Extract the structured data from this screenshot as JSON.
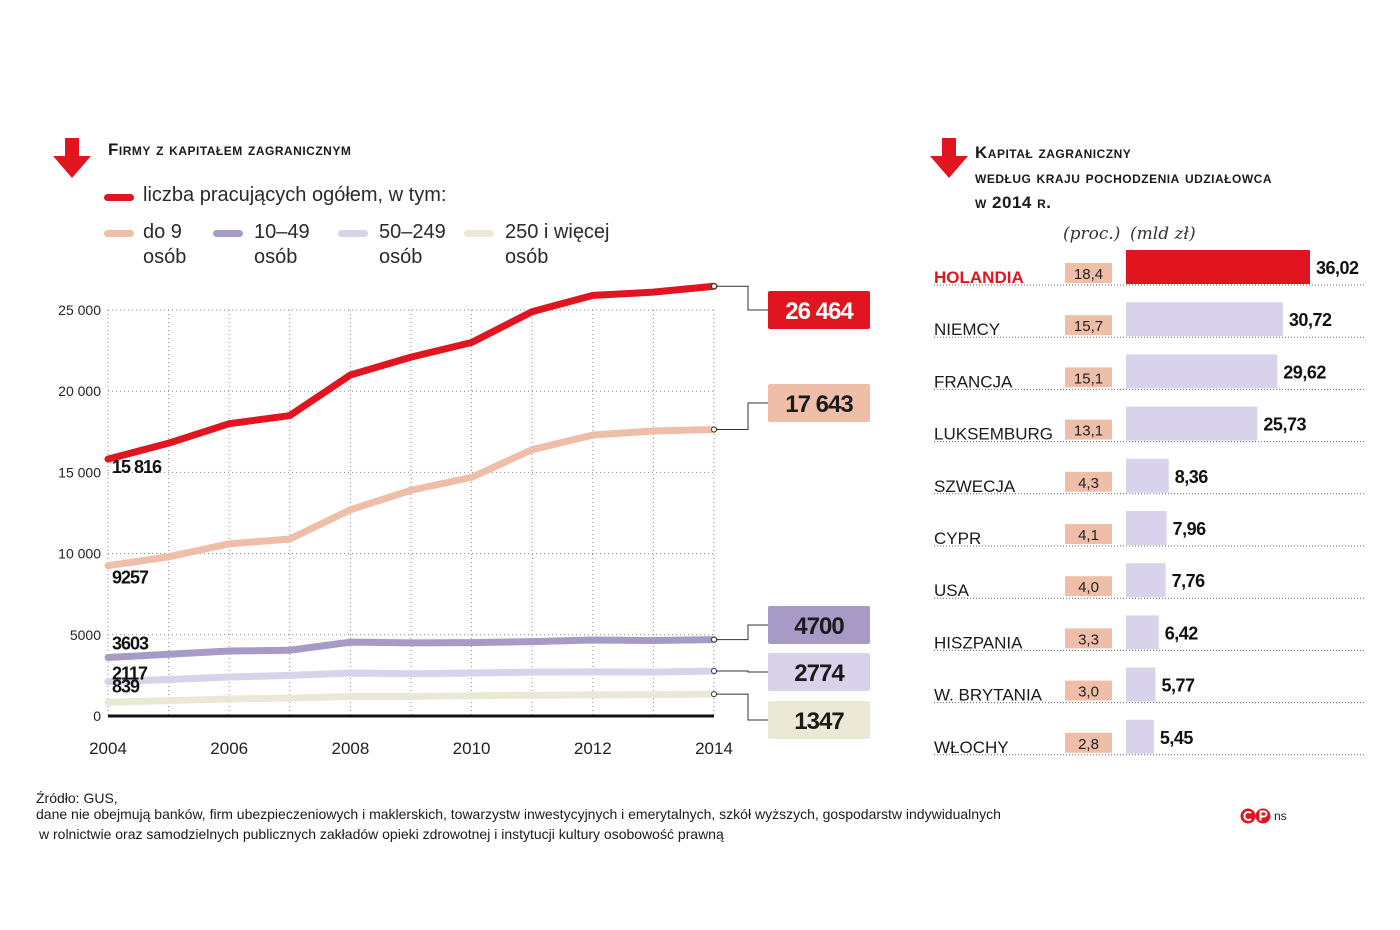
{
  "left_chart": {
    "title": "Firmy z kapitałem zagranicznym",
    "legend_total": "liczba pracujących ogółem, w tym:",
    "legend_groups": [
      {
        "line1": "do 9",
        "line2": "osób",
        "color": "#efbea8"
      },
      {
        "line1": "10–49",
        "line2": "osób",
        "color": "#a89ac6"
      },
      {
        "line1": "50–249",
        "line2": "osób",
        "color": "#d8d2ea"
      },
      {
        "line1": "250 i więcej",
        "line2": "osób",
        "color": "#ebe9d6"
      }
    ]
  },
  "chart_data": [
    {
      "type": "line",
      "title": "Firmy z kapitałem zagranicznym",
      "xlabel": "",
      "ylabel": "",
      "x": [
        2004,
        2005,
        2006,
        2007,
        2008,
        2009,
        2010,
        2011,
        2012,
        2013,
        2014
      ],
      "x_tick_labels": [
        "2004",
        "2006",
        "2008",
        "2010",
        "2012",
        "2014"
      ],
      "x_ticks": [
        2004,
        2006,
        2008,
        2010,
        2012,
        2014
      ],
      "y_tick_labels": [
        "0",
        "5000",
        "10 000",
        "15 000",
        "20 000",
        "25 000"
      ],
      "y_ticks": [
        0,
        5000,
        10000,
        15000,
        20000,
        25000
      ],
      "xlim": [
        2004,
        2014
      ],
      "ylim": [
        0,
        25000
      ],
      "grid": true,
      "series": [
        {
          "name": "liczba pracujących ogółem",
          "color": "#e0151f",
          "width": 7,
          "values": [
            15816,
            16800,
            18000,
            18500,
            21000,
            22100,
            23000,
            24900,
            25900,
            26100,
            26464
          ],
          "start_label": "15 816",
          "end_label": "26 464",
          "end_box_color": "#e0151f",
          "end_text_color": "#ffffff"
        },
        {
          "name": "do 9 osób",
          "color": "#efbea8",
          "width": 7,
          "values": [
            9257,
            9800,
            10600,
            10900,
            12700,
            13900,
            14700,
            16400,
            17300,
            17550,
            17643
          ],
          "start_label": "9257",
          "end_label": "17 643",
          "end_box_color": "#efbea8",
          "end_text_color": "#1a1a1a"
        },
        {
          "name": "10–49 osób",
          "color": "#a89ac6",
          "width": 7,
          "values": [
            3603,
            3800,
            4000,
            4050,
            4550,
            4500,
            4520,
            4580,
            4680,
            4650,
            4700
          ],
          "start_label": "3603",
          "end_label": "4700",
          "end_box_color": "#a89ac6",
          "end_text_color": "#1a1a1a"
        },
        {
          "name": "50–249 osób",
          "color": "#d8d2ea",
          "width": 7,
          "values": [
            2117,
            2250,
            2400,
            2500,
            2650,
            2600,
            2650,
            2700,
            2720,
            2700,
            2774
          ],
          "start_label": "2117",
          "end_label": "2774",
          "end_box_color": "#d8d2ea",
          "end_text_color": "#1a1a1a"
        },
        {
          "name": "250 i więcej osób",
          "color": "#ebe9d6",
          "width": 7,
          "values": [
            839,
            950,
            1050,
            1100,
            1200,
            1200,
            1250,
            1280,
            1300,
            1320,
            1347
          ],
          "start_label": "839",
          "end_label": "1347",
          "end_box_color": "#ebe9d6",
          "end_text_color": "#1a1a1a"
        }
      ]
    },
    {
      "type": "bar",
      "orientation": "horizontal",
      "title": "Kapitał zagraniczny według kraju pochodzenia udziałowca w 2014 r.",
      "categories": [
        "HOLANDIA",
        "NIEMCY",
        "FRANCJA",
        "LUKSEMBURG",
        "SZWECJA",
        "CYPR",
        "USA",
        "HISZPANIA",
        "W. BRYTANIA",
        "WŁOCHY"
      ],
      "pct_labels": [
        "18,4",
        "15,7",
        "15,1",
        "13,1",
        "4,3",
        "4,1",
        "4,0",
        "3,3",
        "3,0",
        "2,8"
      ],
      "values": [
        36.02,
        30.72,
        29.62,
        25.73,
        8.36,
        7.96,
        7.76,
        6.42,
        5.77,
        5.45
      ],
      "value_labels": [
        "36,02",
        "30,72",
        "29,62",
        "25,73",
        "8,36",
        "7,96",
        "7,76",
        "6,42",
        "5,77",
        "5,45"
      ],
      "highlight_index": 0,
      "highlight_color": "#e0151f",
      "bar_color": "#d8d2ea",
      "pct_box_color": "#efbea8",
      "xlim": [
        0,
        36.02
      ],
      "unit_pct": "(proc.)",
      "unit_value": "(mld zł)"
    }
  ],
  "right_chart": {
    "title_line1": "Kapitał zagraniczny",
    "title_line2": "według kraju pochodzenia udziałowca",
    "title_line3": "w 2014 r."
  },
  "footer": {
    "source": "Źródło: GUS,",
    "note1": "dane nie obejmują banków, firm ubezpieczeniowych i maklerskich, towarzystw inwestycyjnych i emerytalnych, szkół wyższych, gospodarstw indywidualnych",
    "note2": "w rolnictwie oraz samodzielnych publicznych zakładów opieki zdrowotnej i instytucji kultury osobowość prawną",
    "logo_text": "ns"
  },
  "colors": {
    "accent": "#e0151f",
    "text": "#1a1a1a"
  }
}
